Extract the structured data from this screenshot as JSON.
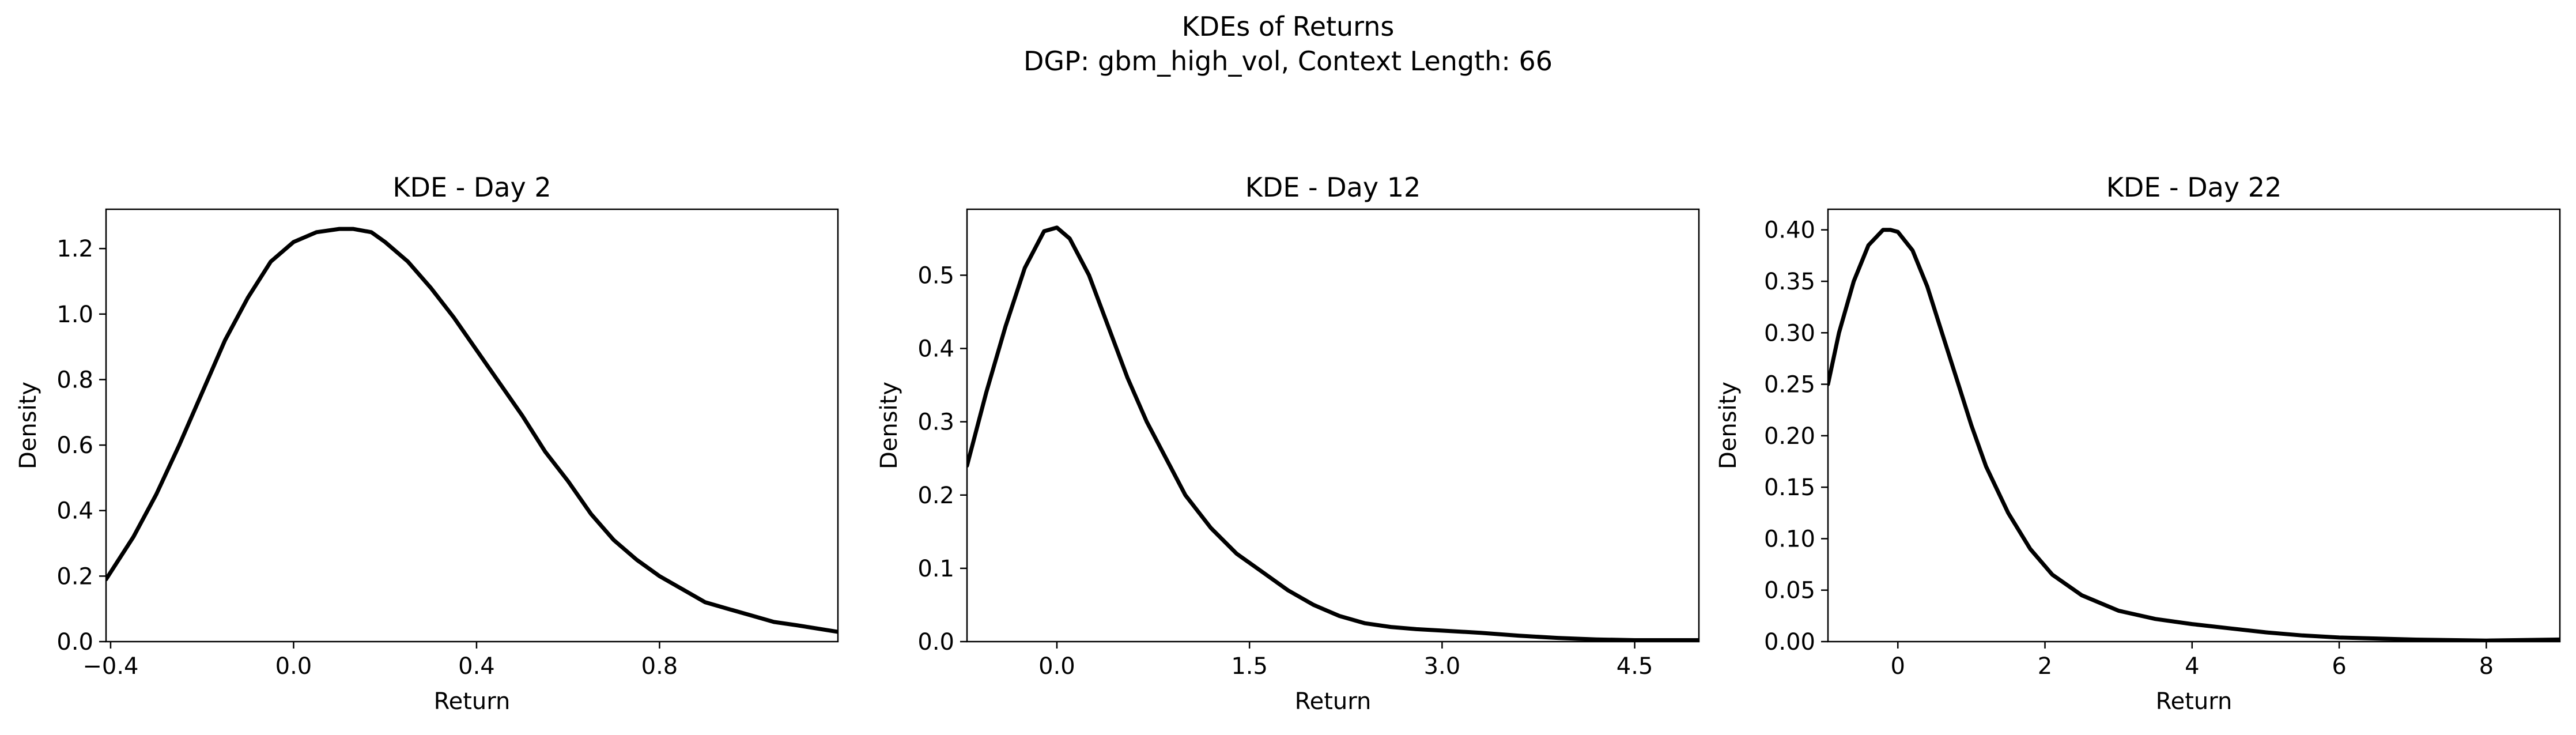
{
  "figure": {
    "title_line1": "KDEs of Returns",
    "title_line2": "DGP: gbm_high_vol, Context Length: 66"
  },
  "chart_data": [
    {
      "type": "line",
      "title": "KDE - Day 2",
      "xlabel": "Return",
      "ylabel": "Density",
      "xlim": [
        -0.41,
        1.19
      ],
      "ylim": [
        0,
        1.32
      ],
      "xticks": [
        -0.4,
        0.0,
        0.4,
        0.8
      ],
      "xtick_labels": [
        "−0.4",
        "0.0",
        "0.4",
        "0.8"
      ],
      "yticks": [
        0.0,
        0.2,
        0.4,
        0.6,
        0.8,
        1.0,
        1.2
      ],
      "ytick_labels": [
        "0.0",
        "0.2",
        "0.4",
        "0.6",
        "0.8",
        "1.0",
        "1.2"
      ],
      "grid": false,
      "line_color": "#000000",
      "x": [
        -0.41,
        -0.35,
        -0.3,
        -0.25,
        -0.2,
        -0.15,
        -0.1,
        -0.05,
        0.0,
        0.05,
        0.1,
        0.13,
        0.17,
        0.2,
        0.25,
        0.3,
        0.35,
        0.4,
        0.45,
        0.5,
        0.55,
        0.6,
        0.65,
        0.7,
        0.75,
        0.8,
        0.85,
        0.9,
        0.95,
        1.0,
        1.05,
        1.1,
        1.19
      ],
      "y": [
        0.19,
        0.32,
        0.45,
        0.6,
        0.76,
        0.92,
        1.05,
        1.16,
        1.22,
        1.25,
        1.26,
        1.26,
        1.25,
        1.22,
        1.16,
        1.08,
        0.99,
        0.89,
        0.79,
        0.69,
        0.58,
        0.49,
        0.39,
        0.31,
        0.25,
        0.2,
        0.16,
        0.12,
        0.1,
        0.08,
        0.06,
        0.05,
        0.03
      ]
    },
    {
      "type": "line",
      "title": "KDE - Day 12",
      "xlabel": "Return",
      "ylabel": "Density",
      "xlim": [
        -0.7,
        5.0
      ],
      "ylim": [
        0,
        0.59
      ],
      "xticks": [
        0.0,
        1.5,
        3.0,
        4.5
      ],
      "xtick_labels": [
        "0.0",
        "1.5",
        "3.0",
        "4.5"
      ],
      "yticks": [
        0.0,
        0.1,
        0.2,
        0.3,
        0.4,
        0.5
      ],
      "ytick_labels": [
        "0.0",
        "0.1",
        "0.2",
        "0.3",
        "0.4",
        "0.5"
      ],
      "grid": false,
      "line_color": "#000000",
      "x": [
        -0.7,
        -0.55,
        -0.4,
        -0.25,
        -0.1,
        0.0,
        0.1,
        0.25,
        0.4,
        0.55,
        0.7,
        0.85,
        1.0,
        1.2,
        1.4,
        1.6,
        1.8,
        2.0,
        2.2,
        2.4,
        2.6,
        2.8,
        3.0,
        3.3,
        3.6,
        3.9,
        4.2,
        4.5,
        5.0
      ],
      "y": [
        0.24,
        0.34,
        0.43,
        0.51,
        0.56,
        0.565,
        0.55,
        0.5,
        0.43,
        0.36,
        0.3,
        0.25,
        0.2,
        0.155,
        0.12,
        0.095,
        0.07,
        0.05,
        0.035,
        0.025,
        0.02,
        0.017,
        0.015,
        0.012,
        0.008,
        0.005,
        0.003,
        0.002,
        0.002
      ]
    },
    {
      "type": "line",
      "title": "KDE - Day 22",
      "xlabel": "Return",
      "ylabel": "Density",
      "xlim": [
        -0.95,
        9.0
      ],
      "ylim": [
        0,
        0.42
      ],
      "xticks": [
        0,
        2,
        4,
        6,
        8
      ],
      "xtick_labels": [
        "0",
        "2",
        "4",
        "6",
        "8"
      ],
      "yticks": [
        0.0,
        0.05,
        0.1,
        0.15,
        0.2,
        0.25,
        0.3,
        0.35,
        0.4
      ],
      "ytick_labels": [
        "0.00",
        "0.05",
        "0.10",
        "0.15",
        "0.20",
        "0.25",
        "0.30",
        "0.35",
        "0.40"
      ],
      "grid": false,
      "line_color": "#000000",
      "x": [
        -0.95,
        -0.8,
        -0.6,
        -0.4,
        -0.2,
        -0.1,
        0.0,
        0.2,
        0.4,
        0.6,
        0.8,
        1.0,
        1.2,
        1.5,
        1.8,
        2.1,
        2.5,
        3.0,
        3.5,
        4.0,
        4.5,
        5.0,
        5.5,
        6.0,
        7.0,
        8.0,
        9.0
      ],
      "y": [
        0.25,
        0.3,
        0.35,
        0.385,
        0.4,
        0.4,
        0.398,
        0.38,
        0.345,
        0.3,
        0.255,
        0.21,
        0.17,
        0.125,
        0.09,
        0.065,
        0.045,
        0.03,
        0.022,
        0.017,
        0.013,
        0.009,
        0.006,
        0.004,
        0.002,
        0.001,
        0.002
      ]
    }
  ]
}
